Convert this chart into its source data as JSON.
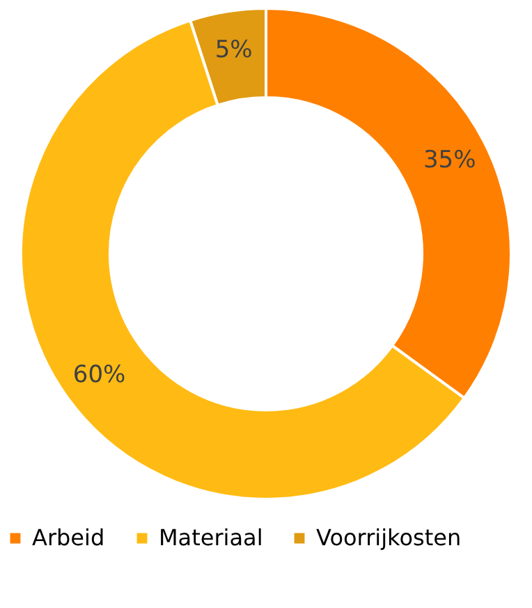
{
  "chart_data": {
    "type": "donut",
    "categories": [
      "Arbeid",
      "Materiaal",
      "Voorrijkosten"
    ],
    "values": [
      35,
      60,
      5
    ],
    "colors": [
      "#ff8000",
      "#ffbb14",
      "#e09b12"
    ],
    "value_labels": [
      "35%",
      "60%",
      "5%"
    ],
    "legend": "bottom"
  }
}
